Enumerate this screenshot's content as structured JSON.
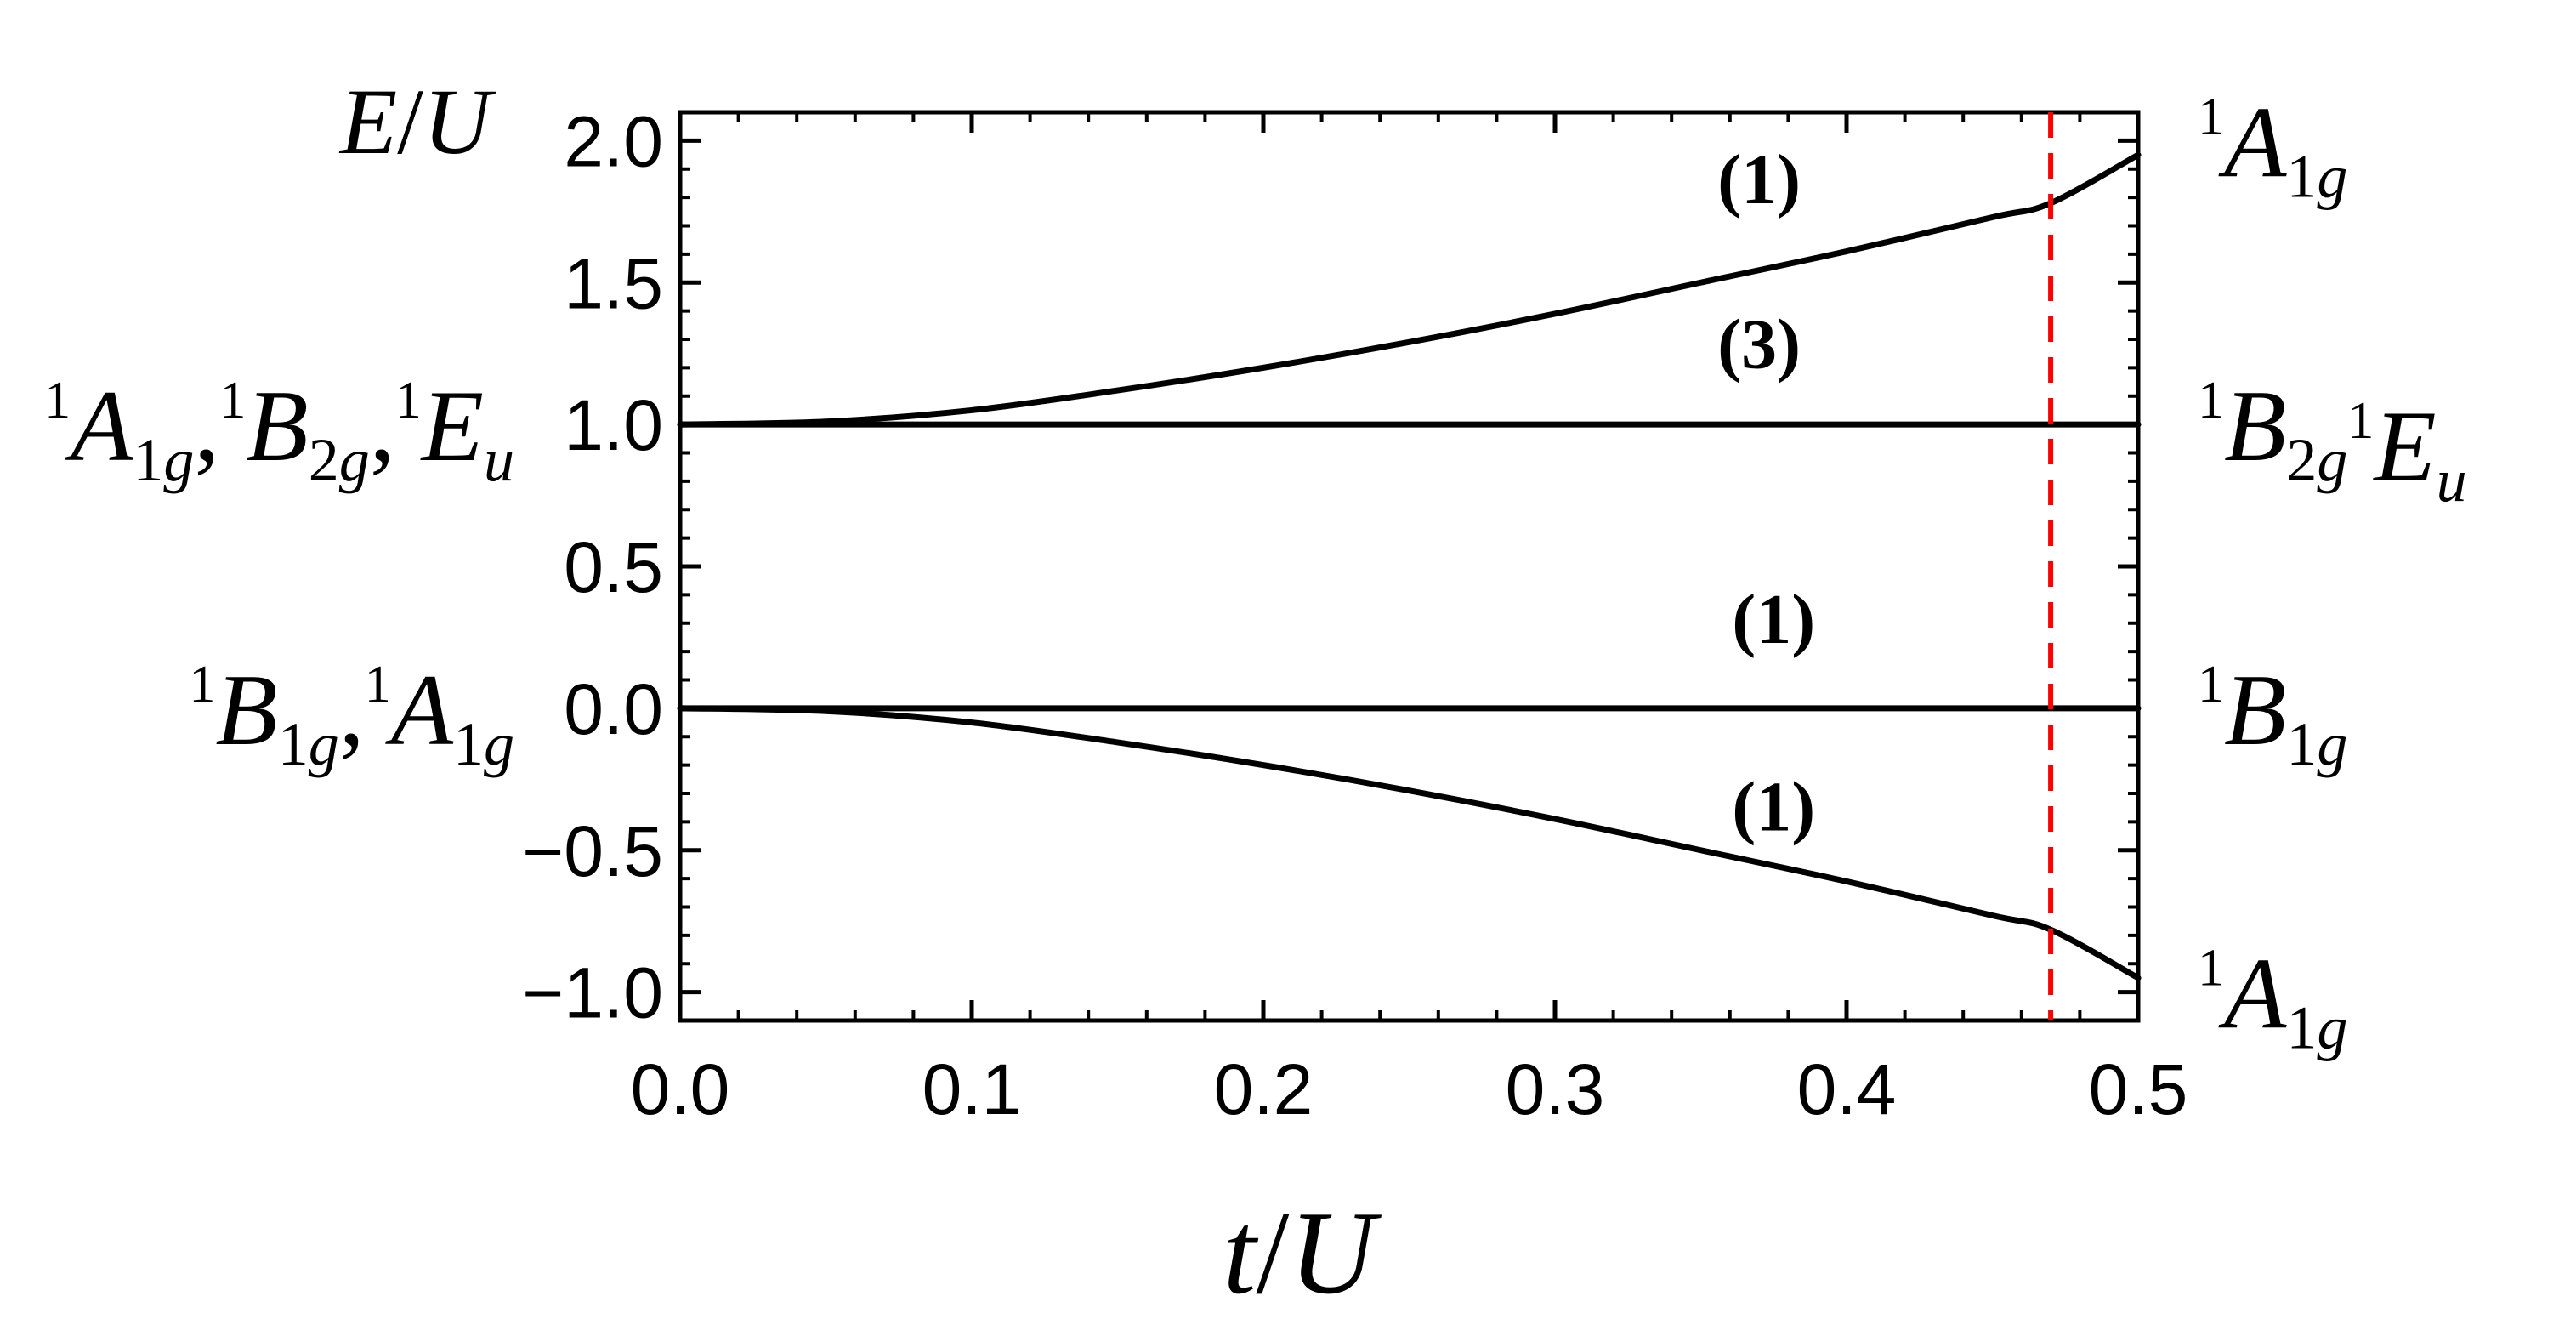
{
  "chart_data": {
    "type": "line",
    "xlabel": {
      "t": "t",
      "slash": "/",
      "U": "U"
    },
    "ylabel": {
      "E": "E",
      "slash": "/",
      "U": "U"
    },
    "xlim": [
      0,
      0.5
    ],
    "ylim": [
      -1.1,
      2.1
    ],
    "x_ticks": [
      "0.0",
      "0.1",
      "0.2",
      "0.3",
      "0.4",
      "0.5"
    ],
    "y_ticks": [
      "−1.0",
      "−0.5",
      "0.0",
      "0.5",
      "1.0",
      "1.5",
      "2.0"
    ],
    "x_tick_values": [
      0,
      0.1,
      0.2,
      0.3,
      0.4,
      0.5
    ],
    "y_tick_values": [
      -1.0,
      -0.5,
      0,
      0.5,
      1.0,
      1.5,
      2.0
    ],
    "x_minor_step": 0.02,
    "y_minor_step": 0.1,
    "grid": false,
    "series": [
      {
        "x": [
          0,
          0.05,
          0.1,
          0.15,
          0.2,
          0.25,
          0.3,
          0.35,
          0.4,
          0.45,
          0.47,
          0.5
        ],
        "y": [
          1.0,
          1.01,
          1.05,
          1.12,
          1.2,
          1.29,
          1.39,
          1.5,
          1.61,
          1.73,
          1.78,
          1.95
        ],
        "color": "#000000"
      },
      {
        "x": [
          0,
          0.5
        ],
        "y": [
          1.0,
          1.0
        ],
        "color": "#000000"
      },
      {
        "x": [
          0,
          0.5
        ],
        "y": [
          0.0,
          0.0
        ],
        "color": "#000000"
      },
      {
        "x": [
          0,
          0.05,
          0.1,
          0.15,
          0.2,
          0.25,
          0.3,
          0.35,
          0.4,
          0.45,
          0.47,
          0.5
        ],
        "y": [
          0.0,
          -0.01,
          -0.05,
          -0.12,
          -0.2,
          -0.29,
          -0.39,
          -0.5,
          -0.61,
          -0.73,
          -0.78,
          -0.95
        ],
        "color": "#000000"
      }
    ],
    "reference_line": {
      "x": 0.47,
      "color": "#ff0000",
      "style": "dashed"
    },
    "degeneracy_labels": [
      {
        "text": "(1)",
        "x": 0.37,
        "y": 1.78
      },
      {
        "text": "(3)",
        "x": 0.37,
        "y": 1.2
      },
      {
        "text": "(1)",
        "x": 0.375,
        "y": 0.23
      },
      {
        "text": "(1)",
        "x": 0.375,
        "y": -0.43
      }
    ],
    "left_state_labels": [
      {
        "y": 1.0,
        "terms": [
          {
            "sup": "1",
            "base": "A",
            "sub": "1g",
            "sep": ","
          },
          {
            "sup": "1",
            "base": "B",
            "sub": "2g",
            "sep": ","
          },
          {
            "sup": "1",
            "base": "E",
            "sub": "u",
            "sep": ""
          }
        ]
      },
      {
        "y": 0.0,
        "terms": [
          {
            "sup": "1",
            "base": "B",
            "sub": "1g",
            "sep": ","
          },
          {
            "sup": "1",
            "base": "A",
            "sub": "1g",
            "sep": ""
          }
        ]
      }
    ],
    "right_state_labels": [
      {
        "y": 2.0,
        "terms": [
          {
            "sup": "1",
            "base": "A",
            "sub": "1g",
            "sep": ""
          }
        ]
      },
      {
        "y": 1.0,
        "terms": [
          {
            "sup": "1",
            "base": "B",
            "sub": "2g",
            "sep": ""
          },
          {
            "sup": "1",
            "base": "E",
            "sub": "u",
            "sep": ""
          }
        ]
      },
      {
        "y": 0.0,
        "terms": [
          {
            "sup": "1",
            "base": "B",
            "sub": "1g",
            "sep": ""
          }
        ]
      },
      {
        "y": -1.0,
        "terms": [
          {
            "sup": "1",
            "base": "A",
            "sub": "1g",
            "sep": ""
          }
        ]
      }
    ]
  }
}
